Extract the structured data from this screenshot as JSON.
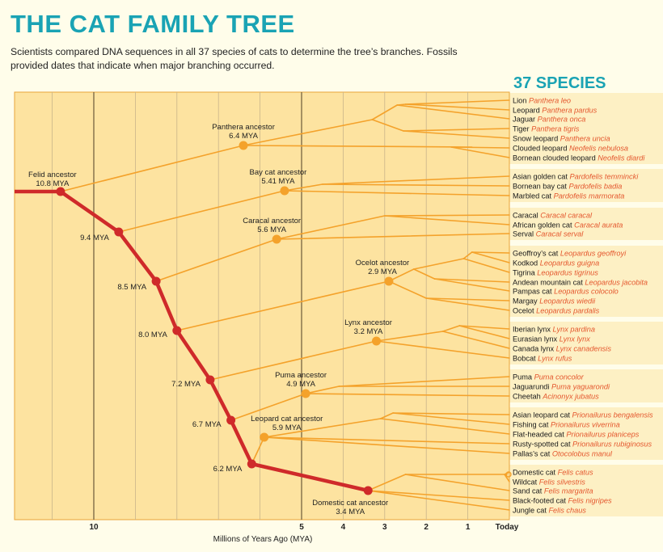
{
  "header": {
    "title": "THE CAT FAMILY TREE",
    "subtitle": "Scientists compared DNA sequences in all 37 species of cats to determine the tree’s branches. Fossils provided dates that indicate when major branching occurred."
  },
  "species_panel": {
    "title": "37 SPECIES"
  },
  "colors": {
    "accent": "#1aa3b4",
    "chart_bg": "#fde3a0",
    "lineage_main": "#cf2a2a",
    "lineage_branch": "#f4a22b",
    "latin": "#e4572e",
    "page_bg": "#fffdea",
    "panel_bg": "#fdf0c4"
  },
  "chart_data": {
    "type": "tree",
    "title": "THE CAT FAMILY TREE",
    "xlabel": "Millions of Years Ago (MYA)",
    "xlim": [
      12,
      0
    ],
    "x_ticks": [
      {
        "value": 10,
        "label": "10"
      },
      {
        "value": 5,
        "label": "5"
      },
      {
        "value": 4,
        "label": "4"
      },
      {
        "value": 3,
        "label": "3"
      },
      {
        "value": 2,
        "label": "2"
      },
      {
        "value": 1,
        "label": "1"
      },
      {
        "value": 0,
        "label": "Today"
      }
    ],
    "gridlines_mya": [
      11,
      10,
      9,
      8,
      7,
      6,
      5,
      4,
      3,
      2,
      1
    ],
    "major_gridlines_mya": [
      10,
      5
    ],
    "species": [
      {
        "common": "Lion",
        "latin": "Panthera leo"
      },
      {
        "common": "Leopard",
        "latin": "Panthera pardus"
      },
      {
        "common": "Jaguar",
        "latin": "Panthera onca"
      },
      {
        "common": "Tiger",
        "latin": "Panthera tigris"
      },
      {
        "common": "Snow leopard",
        "latin": "Panthera uncia"
      },
      {
        "common": "Clouded leopard",
        "latin": "Neofelis nebulosa"
      },
      {
        "common": "Bornean clouded leopard",
        "latin": "Neofelis diardi"
      },
      {
        "common": "Asian golden cat",
        "latin": "Pardofelis temmincki"
      },
      {
        "common": "Bornean bay cat",
        "latin": "Pardofelis badia"
      },
      {
        "common": "Marbled cat",
        "latin": "Pardofelis marmorata"
      },
      {
        "common": "Caracal",
        "latin": "Caracal caracal"
      },
      {
        "common": "African golden cat",
        "latin": "Caracal aurata"
      },
      {
        "common": "Serval",
        "latin": "Caracal serval"
      },
      {
        "common": "Geoffroy’s cat",
        "latin": "Leopardus geoffroyi"
      },
      {
        "common": "Kodkod",
        "latin": "Leopardus guigna"
      },
      {
        "common": "Tigrina",
        "latin": "Leopardus tigrinus"
      },
      {
        "common": "Andean mountain cat",
        "latin": "Leopardus jacobita"
      },
      {
        "common": "Pampas cat",
        "latin": "Leopardus colocolo"
      },
      {
        "common": "Margay",
        "latin": "Leopardus wiedii"
      },
      {
        "common": "Ocelot",
        "latin": "Leopardus pardalis"
      },
      {
        "common": "Iberian lynx",
        "latin": "Lynx pardina"
      },
      {
        "common": "Eurasian lynx",
        "latin": "Lynx lynx"
      },
      {
        "common": "Canada lynx",
        "latin": "Lynx canadensis"
      },
      {
        "common": "Bobcat",
        "latin": "Lynx rufus"
      },
      {
        "common": "Puma",
        "latin": "Puma concolor"
      },
      {
        "common": "Jaguarundi",
        "latin": "Puma yaguarondi"
      },
      {
        "common": "Cheetah",
        "latin": "Acinonyx jubatus"
      },
      {
        "common": "Asian leopard cat",
        "latin": "Prionailurus bengalensis"
      },
      {
        "common": "Fishing cat",
        "latin": "Prionailurus viverrina"
      },
      {
        "common": "Flat-headed cat",
        "latin": "Prionailurus planiceps"
      },
      {
        "common": "Rusty-spotted cat",
        "latin": "Prionailurus rubiginosus"
      },
      {
        "common": "Pallas’s cat",
        "latin": "Otocolobus manul"
      },
      {
        "common": "Domestic cat",
        "latin": "Felis catus"
      },
      {
        "common": "Wildcat",
        "latin": "Felis silvestris"
      },
      {
        "common": "Sand cat",
        "latin": "Felis margarita"
      },
      {
        "common": "Black-footed cat",
        "latin": "Felis nigripes"
      },
      {
        "common": "Jungle cat",
        "latin": "Felis chaus"
      }
    ],
    "spine_nodes": [
      {
        "mya": 10.8,
        "label": "Felid ancestor",
        "date": "10.8 MYA"
      },
      {
        "mya": 9.4,
        "label": "",
        "date": "9.4 MYA"
      },
      {
        "mya": 8.5,
        "label": "",
        "date": "8.5 MYA"
      },
      {
        "mya": 8.0,
        "label": "",
        "date": "8.0 MYA"
      },
      {
        "mya": 7.2,
        "label": "",
        "date": "7.2 MYA"
      },
      {
        "mya": 6.7,
        "label": "",
        "date": "6.7 MYA"
      },
      {
        "mya": 6.2,
        "label": "",
        "date": "6.2 MYA"
      },
      {
        "mya": 3.4,
        "label": "Domestic cat ancestor",
        "date": "3.4 MYA"
      }
    ],
    "lineage_nodes": [
      {
        "mya": 6.4,
        "label": "Panthera ancestor",
        "date": "6.4 MYA",
        "from_spine": 0,
        "leaves": [
          0,
          6
        ]
      },
      {
        "mya": 5.41,
        "label": "Bay cat ancestor",
        "date": "5.41 MYA",
        "from_spine": 1,
        "leaves": [
          7,
          9
        ]
      },
      {
        "mya": 5.6,
        "label": "Caracal ancestor",
        "date": "5.6 MYA",
        "from_spine": 2,
        "leaves": [
          10,
          12
        ]
      },
      {
        "mya": 2.9,
        "label": "Ocelot ancestor",
        "date": "2.9 MYA",
        "from_spine": 3,
        "leaves": [
          13,
          19
        ]
      },
      {
        "mya": 3.2,
        "label": "Lynx ancestor",
        "date": "3.2 MYA",
        "from_spine": 4,
        "leaves": [
          20,
          23
        ]
      },
      {
        "mya": 4.9,
        "label": "Puma ancestor",
        "date": "4.9 MYA",
        "from_spine": 5,
        "leaves": [
          24,
          26
        ]
      },
      {
        "mya": 5.9,
        "label": "Leopard cat ancestor",
        "date": "5.9 MYA",
        "from_spine": 6,
        "leaves": [
          27,
          31
        ]
      }
    ]
  }
}
